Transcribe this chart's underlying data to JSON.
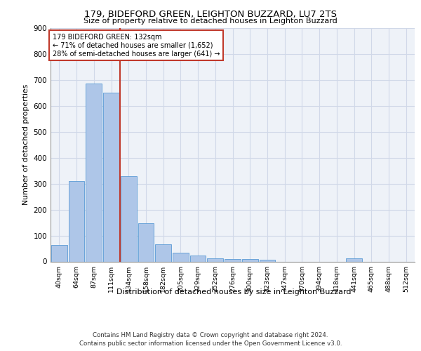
{
  "title": "179, BIDEFORD GREEN, LEIGHTON BUZZARD, LU7 2TS",
  "subtitle": "Size of property relative to detached houses in Leighton Buzzard",
  "xlabel": "Distribution of detached houses by size in Leighton Buzzard",
  "ylabel": "Number of detached properties",
  "footer_line1": "Contains HM Land Registry data © Crown copyright and database right 2024.",
  "footer_line2": "Contains public sector information licensed under the Open Government Licence v3.0.",
  "annotation_line1": "179 BIDEFORD GREEN: 132sqm",
  "annotation_line2": "← 71% of detached houses are smaller (1,652)",
  "annotation_line3": "28% of semi-detached houses are larger (641) →",
  "bar_labels": [
    "40sqm",
    "64sqm",
    "87sqm",
    "111sqm",
    "134sqm",
    "158sqm",
    "182sqm",
    "205sqm",
    "229sqm",
    "252sqm",
    "276sqm",
    "300sqm",
    "323sqm",
    "347sqm",
    "370sqm",
    "394sqm",
    "418sqm",
    "441sqm",
    "465sqm",
    "488sqm",
    "512sqm"
  ],
  "bar_values": [
    63,
    310,
    685,
    650,
    330,
    148,
    65,
    35,
    22,
    12,
    10,
    10,
    8,
    0,
    0,
    0,
    0,
    12,
    0,
    0,
    0
  ],
  "bar_color": "#aec6e8",
  "bar_edge_color": "#5b9bd5",
  "vline_color": "#c0392b",
  "grid_color": "#d0d8e8",
  "background_color": "#eef2f8",
  "ylim": [
    0,
    900
  ],
  "yticks": [
    0,
    100,
    200,
    300,
    400,
    500,
    600,
    700,
    800,
    900
  ],
  "vline_position": 3.5
}
